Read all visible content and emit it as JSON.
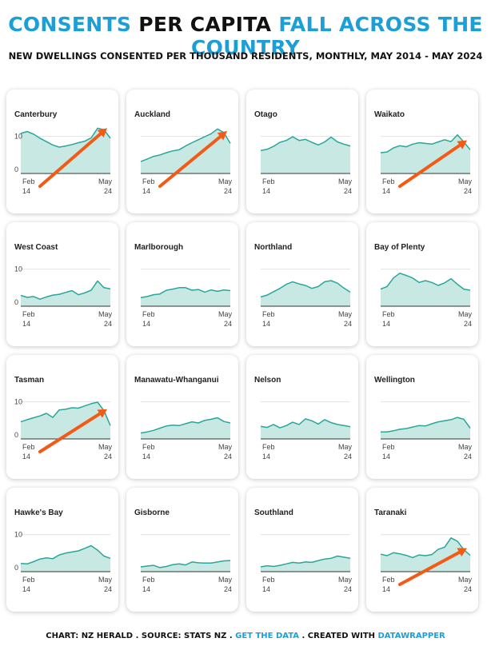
{
  "title": {
    "part1": "CONSENTS",
    "part2": " PER CAPITA ",
    "part3": "FALL ACROSS THE COUNTRY"
  },
  "subtitle": "NEW DWELLINGS CONSENTED PER THOUSAND RESIDENTS, MONTHLY, MAY 2014 - MAY 2024",
  "footer": {
    "a": "CHART: NZ HERALD . SOURCE: STATS NZ . ",
    "link1": "GET THE DATA",
    "b": " . CREATED WITH ",
    "link2": "DATAWRAPPER"
  },
  "colors": {
    "line": "#2aa69a",
    "fill": "#c8e8e3",
    "arrow": "#f25a16",
    "accent": "#1b9fd6"
  },
  "chart_data": {
    "type": "area",
    "ylim": [
      0,
      14
    ],
    "x_ticks": [
      {
        "label1": "Feb",
        "label2": "14",
        "date": "2014-02"
      },
      {
        "label1": "May",
        "label2": "24",
        "date": "2024-05"
      }
    ],
    "x_range": [
      "2014-02",
      "2024-05"
    ],
    "panels": [
      {
        "region": "Canterbury",
        "y_ticks": [
          "10",
          "0"
        ],
        "arrow": true,
        "values": [
          10.8,
          11.3,
          10.6,
          9.5,
          8.6,
          7.7,
          7.1,
          7.4,
          7.8,
          8.3,
          8.7,
          9.6,
          12.2,
          11.8,
          9.5
        ]
      },
      {
        "region": "Auckland",
        "y_ticks": [],
        "arrow": true,
        "values": [
          3.2,
          3.9,
          4.6,
          5.0,
          5.6,
          6.1,
          6.4,
          7.4,
          8.3,
          9.1,
          9.9,
          10.7,
          12.0,
          11.0,
          8.1
        ]
      },
      {
        "region": "Otago",
        "y_ticks": [],
        "arrow": false,
        "values": [
          6.2,
          6.5,
          7.3,
          8.4,
          8.9,
          9.9,
          8.9,
          9.2,
          8.4,
          7.7,
          8.5,
          9.8,
          8.5,
          7.9,
          7.4
        ]
      },
      {
        "region": "Waikato",
        "y_ticks": [],
        "arrow": true,
        "values": [
          5.6,
          5.8,
          6.9,
          7.5,
          7.2,
          7.9,
          8.3,
          8.1,
          7.9,
          8.5,
          9.1,
          8.6,
          10.4,
          8.5,
          6.4
        ]
      },
      {
        "region": "West Coast",
        "y_ticks": [
          "10",
          "0"
        ],
        "arrow": false,
        "values": [
          2.9,
          2.4,
          2.6,
          1.9,
          2.5,
          3.0,
          3.2,
          3.7,
          4.2,
          3.1,
          3.6,
          4.3,
          6.8,
          5.0,
          4.7
        ]
      },
      {
        "region": "Marlborough",
        "y_ticks": [],
        "arrow": false,
        "values": [
          2.3,
          2.6,
          3.1,
          3.3,
          4.3,
          4.6,
          5.0,
          5.0,
          4.3,
          4.5,
          3.8,
          4.4,
          4.0,
          4.4,
          4.2
        ]
      },
      {
        "region": "Northland",
        "y_ticks": [],
        "arrow": false,
        "values": [
          2.5,
          3.0,
          3.9,
          4.8,
          5.9,
          6.6,
          6.0,
          5.6,
          4.8,
          5.3,
          6.6,
          6.9,
          6.2,
          4.9,
          3.8
        ]
      },
      {
        "region": "Bay of Plenty",
        "y_ticks": [],
        "arrow": false,
        "values": [
          4.6,
          5.3,
          7.6,
          8.9,
          8.3,
          7.6,
          6.4,
          6.9,
          6.4,
          5.6,
          6.3,
          7.4,
          5.9,
          4.6,
          4.3
        ]
      },
      {
        "region": "Tasman",
        "y_ticks": [
          "10",
          "0"
        ],
        "arrow": true,
        "values": [
          4.6,
          5.2,
          5.7,
          6.2,
          6.9,
          5.8,
          7.8,
          8.0,
          8.4,
          8.3,
          8.9,
          9.5,
          9.9,
          7.6,
          3.6
        ]
      },
      {
        "region": "Manawatu-Whanganui",
        "y_ticks": [],
        "arrow": false,
        "values": [
          1.6,
          1.9,
          2.3,
          2.9,
          3.5,
          3.7,
          3.6,
          4.1,
          4.6,
          4.3,
          5.0,
          5.3,
          5.7,
          4.7,
          4.3
        ]
      },
      {
        "region": "Nelson",
        "y_ticks": [],
        "arrow": false,
        "values": [
          3.4,
          3.1,
          3.9,
          3.0,
          3.6,
          4.5,
          3.9,
          5.4,
          4.9,
          4.0,
          5.2,
          4.4,
          3.9,
          3.6,
          3.3
        ]
      },
      {
        "region": "Wellington",
        "y_ticks": [],
        "arrow": false,
        "values": [
          1.9,
          1.9,
          2.2,
          2.6,
          2.8,
          3.2,
          3.6,
          3.5,
          4.1,
          4.6,
          4.9,
          5.2,
          5.8,
          5.3,
          2.9
        ]
      },
      {
        "region": "Hawke's Bay",
        "y_ticks": [
          "10",
          "0"
        ],
        "arrow": false,
        "values": [
          2.2,
          2.1,
          2.7,
          3.4,
          3.7,
          3.5,
          4.5,
          5.0,
          5.3,
          5.6,
          6.3,
          7.0,
          5.8,
          4.2,
          3.6
        ]
      },
      {
        "region": "Gisborne",
        "y_ticks": [],
        "arrow": false,
        "values": [
          1.3,
          1.5,
          1.7,
          1.1,
          1.4,
          1.9,
          2.1,
          1.8,
          2.6,
          2.4,
          2.3,
          2.3,
          2.6,
          2.9,
          3.0
        ]
      },
      {
        "region": "Southland",
        "y_ticks": [],
        "arrow": false,
        "values": [
          1.3,
          1.6,
          1.4,
          1.7,
          2.1,
          2.5,
          2.3,
          2.6,
          2.5,
          3.0,
          3.4,
          3.6,
          4.2,
          3.9,
          3.6
        ]
      },
      {
        "region": "Taranaki",
        "y_ticks": [],
        "arrow": true,
        "values": [
          4.7,
          4.3,
          5.1,
          4.8,
          4.4,
          3.8,
          4.5,
          4.3,
          4.6,
          6.0,
          6.6,
          9.1,
          8.2,
          5.9,
          4.4
        ]
      }
    ]
  }
}
